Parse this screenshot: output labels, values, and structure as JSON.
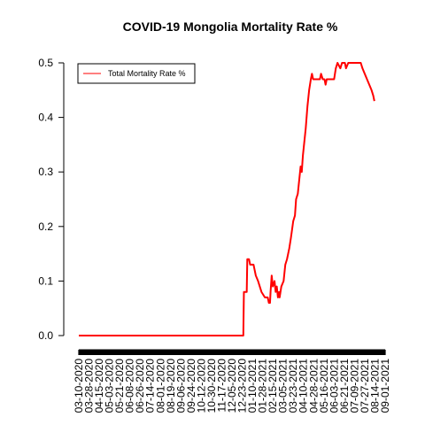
{
  "chart_data": {
    "type": "line",
    "title": "COVID-19 Mongolia Mortality Rate %",
    "xlabel": "",
    "ylabel": "",
    "ylim": [
      0,
      0.5
    ],
    "yticks": [
      "0.0",
      "0.1",
      "0.2",
      "0.3",
      "0.4",
      "0.5"
    ],
    "xtick_labels": [
      "03-10-2020",
      "03-28-2020",
      "04-15-2020",
      "05-03-2020",
      "05-21-2020",
      "06-08-2020",
      "06-26-2020",
      "07-14-2020",
      "08-01-2020",
      "08-19-2020",
      "09-06-2020",
      "09-24-2020",
      "10-12-2020",
      "10-30-2020",
      "11-17-2020",
      "12-05-2020",
      "12-23-2020",
      "01-10-2021",
      "01-28-2021",
      "02-15-2021",
      "03-05-2021",
      "03-23-2021",
      "04-10-2021",
      "04-28-2021",
      "05-16-2021",
      "06-03-2021",
      "06-21-2021",
      "07-09-2021",
      "07-27-2021",
      "08-14-2021",
      "09-01-2021"
    ],
    "legend": {
      "position": "top-left",
      "entries": [
        "Total Mortality Rate %"
      ]
    },
    "colors": {
      "series": "#ff0000",
      "axis": "#000000"
    },
    "series": [
      {
        "name": "Total Mortality Rate %",
        "points": [
          [
            "03-10-2020",
            0.0
          ],
          [
            "12-25-2020",
            0.0
          ],
          [
            "12-26-2020",
            0.08
          ],
          [
            "12-31-2020",
            0.08
          ],
          [
            "01-01-2021",
            0.14
          ],
          [
            "01-04-2021",
            0.14
          ],
          [
            "01-06-2021",
            0.13
          ],
          [
            "01-12-2021",
            0.13
          ],
          [
            "01-16-2021",
            0.11
          ],
          [
            "01-20-2021",
            0.1
          ],
          [
            "01-26-2021",
            0.08
          ],
          [
            "02-01-2021",
            0.07
          ],
          [
            "02-06-2021",
            0.07
          ],
          [
            "02-08-2021",
            0.06
          ],
          [
            "02-10-2021",
            0.06
          ],
          [
            "02-11-2021",
            0.08
          ],
          [
            "02-13-2021",
            0.11
          ],
          [
            "02-15-2021",
            0.09
          ],
          [
            "02-18-2021",
            0.1
          ],
          [
            "02-20-2021",
            0.08
          ],
          [
            "02-22-2021",
            0.09
          ],
          [
            "02-24-2021",
            0.07
          ],
          [
            "02-26-2021",
            0.08
          ],
          [
            "02-27-2021",
            0.07
          ],
          [
            "03-02-2021",
            0.09
          ],
          [
            "03-06-2021",
            0.1
          ],
          [
            "03-09-2021",
            0.13
          ],
          [
            "03-12-2021",
            0.14
          ],
          [
            "03-16-2021",
            0.16
          ],
          [
            "03-19-2021",
            0.18
          ],
          [
            "03-23-2021",
            0.21
          ],
          [
            "03-26-2021",
            0.22
          ],
          [
            "03-28-2021",
            0.25
          ],
          [
            "03-31-2021",
            0.26
          ],
          [
            "04-03-2021",
            0.29
          ],
          [
            "04-05-2021",
            0.31
          ],
          [
            "04-07-2021",
            0.3
          ],
          [
            "04-09-2021",
            0.33
          ],
          [
            "04-11-2021",
            0.35
          ],
          [
            "04-14-2021",
            0.38
          ],
          [
            "04-17-2021",
            0.42
          ],
          [
            "04-20-2021",
            0.45
          ],
          [
            "04-23-2021",
            0.47
          ],
          [
            "04-25-2021",
            0.48
          ],
          [
            "04-27-2021",
            0.47
          ],
          [
            "05-09-2021",
            0.47
          ],
          [
            "05-11-2021",
            0.48
          ],
          [
            "05-14-2021",
            0.47
          ],
          [
            "05-17-2021",
            0.47
          ],
          [
            "05-19-2021",
            0.46
          ],
          [
            "05-21-2021",
            0.47
          ],
          [
            "06-03-2021",
            0.47
          ],
          [
            "06-06-2021",
            0.49
          ],
          [
            "06-09-2021",
            0.5
          ],
          [
            "06-14-2021",
            0.49
          ],
          [
            "06-17-2021",
            0.5
          ],
          [
            "06-22-2021",
            0.5
          ],
          [
            "06-24-2021",
            0.49
          ],
          [
            "06-28-2021",
            0.5
          ],
          [
            "07-20-2021",
            0.5
          ],
          [
            "07-23-2021",
            0.49
          ],
          [
            "07-27-2021",
            0.48
          ],
          [
            "07-31-2021",
            0.47
          ],
          [
            "08-04-2021",
            0.46
          ],
          [
            "08-08-2021",
            0.45
          ],
          [
            "08-11-2021",
            0.44
          ],
          [
            "08-13-2021",
            0.43
          ]
        ]
      }
    ]
  }
}
